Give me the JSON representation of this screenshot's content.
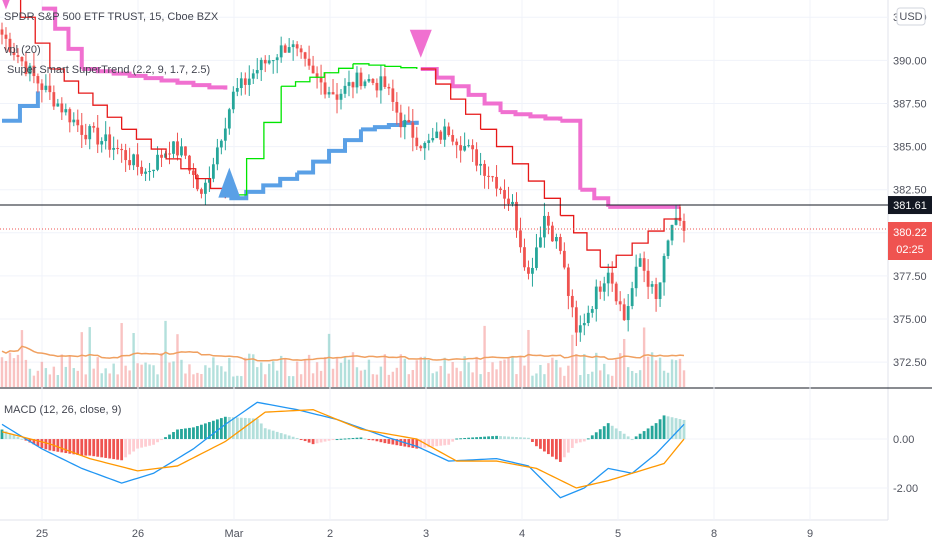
{
  "legend": {
    "title": "SPDR S&P 500 ETF TRUST, 15, Cboe BZX",
    "vpl": "vpl (20)",
    "supertrend": "Super Smart SuperTrend (2.2, 9, 1.7, 2.5)",
    "macd": "MACD (12, 26, close, 9)"
  },
  "currency_button": "USD",
  "price_tags": {
    "last": "381.61",
    "current": "380.22",
    "countdown": "02:25"
  },
  "colors": {
    "up": "#26a69a",
    "down": "#ef5350",
    "supertrend_up": "#00e600",
    "supertrend_down": "#e61919",
    "band_up": "#5aa0e6",
    "band_down": "#f070d0",
    "macd_line": "#2196f3",
    "signal_line": "#ff9800",
    "last_tag": "#131722",
    "current_tag": "#ef5350"
  },
  "chart_data": [
    {
      "type": "candlestick",
      "title": "SPDR S&P 500 ETF TRUST, 15, Cboe BZX",
      "x_ticks": [
        "25",
        "26",
        "Mar",
        "2",
        "3",
        "4",
        "5",
        "8",
        "9"
      ],
      "y_ticks": [
        "372.50",
        "375.00",
        "377.50",
        "380.00",
        "382.50",
        "385.00",
        "387.50",
        "390.00",
        "392.50"
      ],
      "ylim": [
        371,
        393.5
      ],
      "key_points": [
        {
          "x": 0,
          "price": 391.5
        },
        {
          "x": 8,
          "price": 389.0
        },
        {
          "x": 14,
          "price": 387.5
        },
        {
          "x": 20,
          "price": 386.0
        },
        {
          "x": 28,
          "price": 385.0
        },
        {
          "x": 36,
          "price": 383.5
        },
        {
          "x": 42,
          "price": 385.0
        },
        {
          "x": 46,
          "price": 384.5
        },
        {
          "x": 50,
          "price": 382.0
        },
        {
          "x": 54,
          "price": 385.0
        },
        {
          "x": 58,
          "price": 388.0
        },
        {
          "x": 64,
          "price": 389.5
        },
        {
          "x": 72,
          "price": 391.0
        },
        {
          "x": 78,
          "price": 389.0
        },
        {
          "x": 84,
          "price": 388.0
        },
        {
          "x": 90,
          "price": 389.0
        },
        {
          "x": 96,
          "price": 388.5
        },
        {
          "x": 100,
          "price": 386.5
        },
        {
          "x": 106,
          "price": 385.0
        },
        {
          "x": 112,
          "price": 386.0
        },
        {
          "x": 118,
          "price": 384.5
        },
        {
          "x": 124,
          "price": 383.0
        },
        {
          "x": 128,
          "price": 381.5
        },
        {
          "x": 132,
          "price": 377.5
        },
        {
          "x": 136,
          "price": 381.0
        },
        {
          "x": 140,
          "price": 379.0
        },
        {
          "x": 144,
          "price": 374.0
        },
        {
          "x": 148,
          "price": 376.0
        },
        {
          "x": 152,
          "price": 378.0
        },
        {
          "x": 156,
          "price": 375.0
        },
        {
          "x": 160,
          "price": 378.5
        },
        {
          "x": 164,
          "price": 376.0
        },
        {
          "x": 168,
          "price": 380.5
        },
        {
          "x": 171,
          "price": 380.2
        }
      ],
      "supertrend": [
        {
          "x": 0,
          "value": 388.8,
          "trend": "up"
        },
        {
          "x": 1,
          "value": 394.0,
          "trend": "down"
        },
        {
          "x": 12,
          "value": 389.5,
          "trend": "down"
        },
        {
          "x": 30,
          "value": 386.0,
          "trend": "down"
        },
        {
          "x": 56,
          "value": 382.0,
          "trend": "down"
        },
        {
          "x": 57,
          "value": 382.2,
          "trend": "up"
        },
        {
          "x": 70,
          "value": 388.5,
          "trend": "up"
        },
        {
          "x": 88,
          "value": 389.8,
          "trend": "up"
        },
        {
          "x": 104,
          "value": 389.5,
          "trend": "up"
        },
        {
          "x": 105,
          "value": 389.5,
          "trend": "down"
        },
        {
          "x": 120,
          "value": 386.0,
          "trend": "down"
        },
        {
          "x": 140,
          "value": 381.0,
          "trend": "down"
        },
        {
          "x": 150,
          "value": 378.0,
          "trend": "down"
        },
        {
          "x": 170,
          "value": 381.5,
          "trend": "down"
        }
      ],
      "band": [
        {
          "x": 0,
          "value": 386.5,
          "trend": "up"
        },
        {
          "x": 9,
          "value": 388.2,
          "trend": "up"
        },
        {
          "x": 10,
          "value": 393.0,
          "trend": "down"
        },
        {
          "x": 20,
          "value": 389.5,
          "trend": "down"
        },
        {
          "x": 56,
          "value": 388.3,
          "trend": "down"
        },
        {
          "x": 57,
          "value": 382.0,
          "trend": "up"
        },
        {
          "x": 74,
          "value": 383.5,
          "trend": "up"
        },
        {
          "x": 90,
          "value": 386.0,
          "trend": "up"
        },
        {
          "x": 104,
          "value": 386.5,
          "trend": "up"
        },
        {
          "x": 105,
          "value": 389.5,
          "trend": "down"
        },
        {
          "x": 125,
          "value": 387.0,
          "trend": "down"
        },
        {
          "x": 140,
          "value": 386.5,
          "trend": "down"
        },
        {
          "x": 145,
          "value": 382.5,
          "trend": "down"
        },
        {
          "x": 152,
          "value": 381.5,
          "trend": "down"
        },
        {
          "x": 170,
          "value": 381.5,
          "trend": "down"
        }
      ],
      "signals": [
        {
          "x": 1,
          "price": 393.3,
          "dir": "down"
        },
        {
          "x": 57,
          "price": 383.2,
          "dir": "up"
        },
        {
          "x": 105,
          "price": 390.5,
          "dir": "down"
        }
      ]
    },
    {
      "type": "macd",
      "title": "MACD (12, 26, close, 9)",
      "y_ticks": [
        "0.00",
        "-2.00"
      ],
      "ylim": [
        -2.9,
        1.8
      ],
      "macd_points": [
        {
          "x": 0,
          "value": 0.6
        },
        {
          "x": 10,
          "value": -0.4
        },
        {
          "x": 20,
          "value": -1.2
        },
        {
          "x": 30,
          "value": -1.8
        },
        {
          "x": 38,
          "value": -1.4
        },
        {
          "x": 48,
          "value": -0.4
        },
        {
          "x": 56,
          "value": 0.6
        },
        {
          "x": 64,
          "value": 1.5
        },
        {
          "x": 74,
          "value": 1.2
        },
        {
          "x": 84,
          "value": 0.8
        },
        {
          "x": 96,
          "value": 0.1
        },
        {
          "x": 104,
          "value": -0.3
        },
        {
          "x": 112,
          "value": -0.9
        },
        {
          "x": 124,
          "value": -0.8
        },
        {
          "x": 132,
          "value": -1.1
        },
        {
          "x": 140,
          "value": -2.4
        },
        {
          "x": 146,
          "value": -2.0
        },
        {
          "x": 152,
          "value": -1.2
        },
        {
          "x": 158,
          "value": -1.4
        },
        {
          "x": 164,
          "value": -0.6
        },
        {
          "x": 171,
          "value": 0.6
        }
      ],
      "signal_points": [
        {
          "x": 0,
          "value": 0.3
        },
        {
          "x": 12,
          "value": -0.2
        },
        {
          "x": 22,
          "value": -0.8
        },
        {
          "x": 34,
          "value": -1.3
        },
        {
          "x": 44,
          "value": -1.1
        },
        {
          "x": 56,
          "value": -0.1
        },
        {
          "x": 66,
          "value": 1.1
        },
        {
          "x": 78,
          "value": 1.2
        },
        {
          "x": 90,
          "value": 0.4
        },
        {
          "x": 104,
          "value": 0.0
        },
        {
          "x": 114,
          "value": -0.9
        },
        {
          "x": 124,
          "value": -0.9
        },
        {
          "x": 134,
          "value": -1.2
        },
        {
          "x": 144,
          "value": -2.0
        },
        {
          "x": 152,
          "value": -1.7
        },
        {
          "x": 160,
          "value": -1.3
        },
        {
          "x": 166,
          "value": -1.0
        },
        {
          "x": 171,
          "value": 0.0
        }
      ]
    }
  ]
}
